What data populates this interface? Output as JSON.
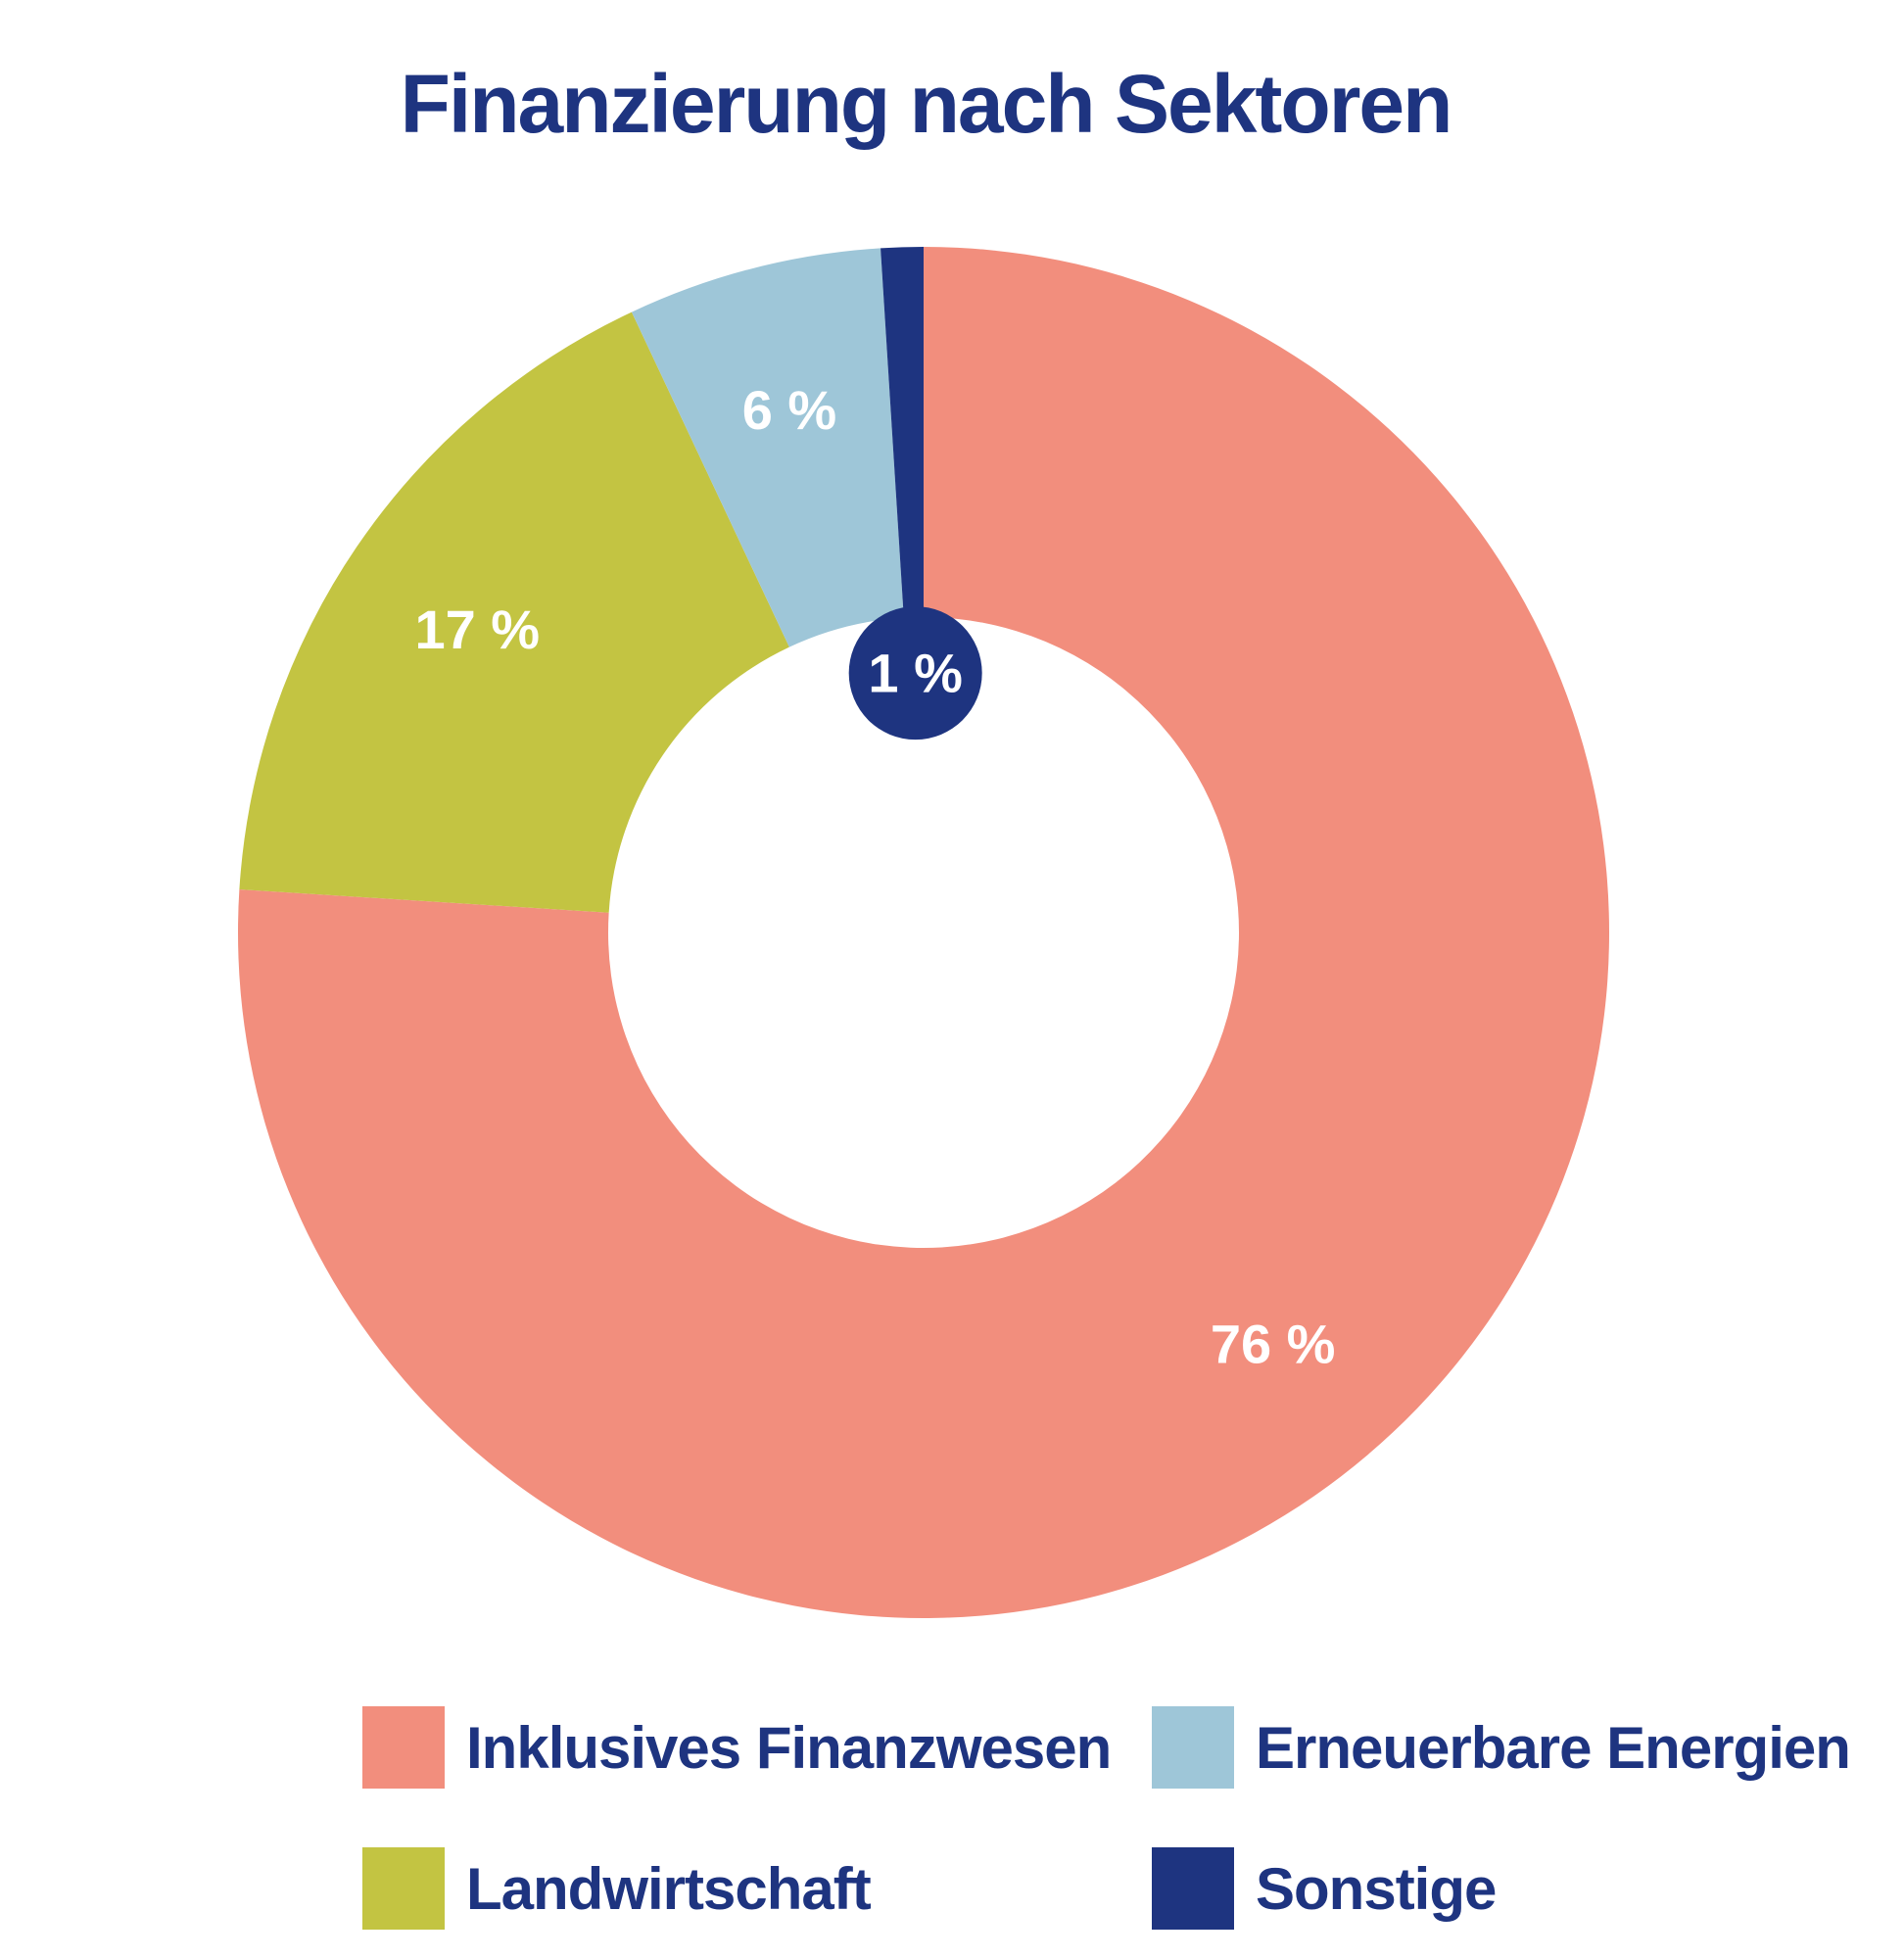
{
  "chart_data": {
    "type": "pie",
    "title": "Finanzierung nach Sektoren",
    "slices": [
      {
        "name": "Inklusives Finanzwesen",
        "value": 76,
        "label": "76 %",
        "color": "#f28e7d"
      },
      {
        "name": "Landwirtschaft",
        "value": 17,
        "label": "17 %",
        "color": "#c3c442"
      },
      {
        "name": "Erneuerbare Energien",
        "value": 6,
        "label": "6 %",
        "color": "#9ec6d8"
      },
      {
        "name": "Sonstige",
        "value": 1,
        "label": "1 %",
        "color": "#1e3480"
      }
    ],
    "legend": [
      {
        "name": "Inklusives Finanzwesen",
        "color": "#f28e7d"
      },
      {
        "name": "Erneuerbare Energien",
        "color": "#9ec6d8"
      },
      {
        "name": "Landwirtschaft",
        "color": "#c3c442"
      },
      {
        "name": "Sonstige",
        "color": "#1e3480"
      }
    ],
    "legend_position": "bottom"
  }
}
